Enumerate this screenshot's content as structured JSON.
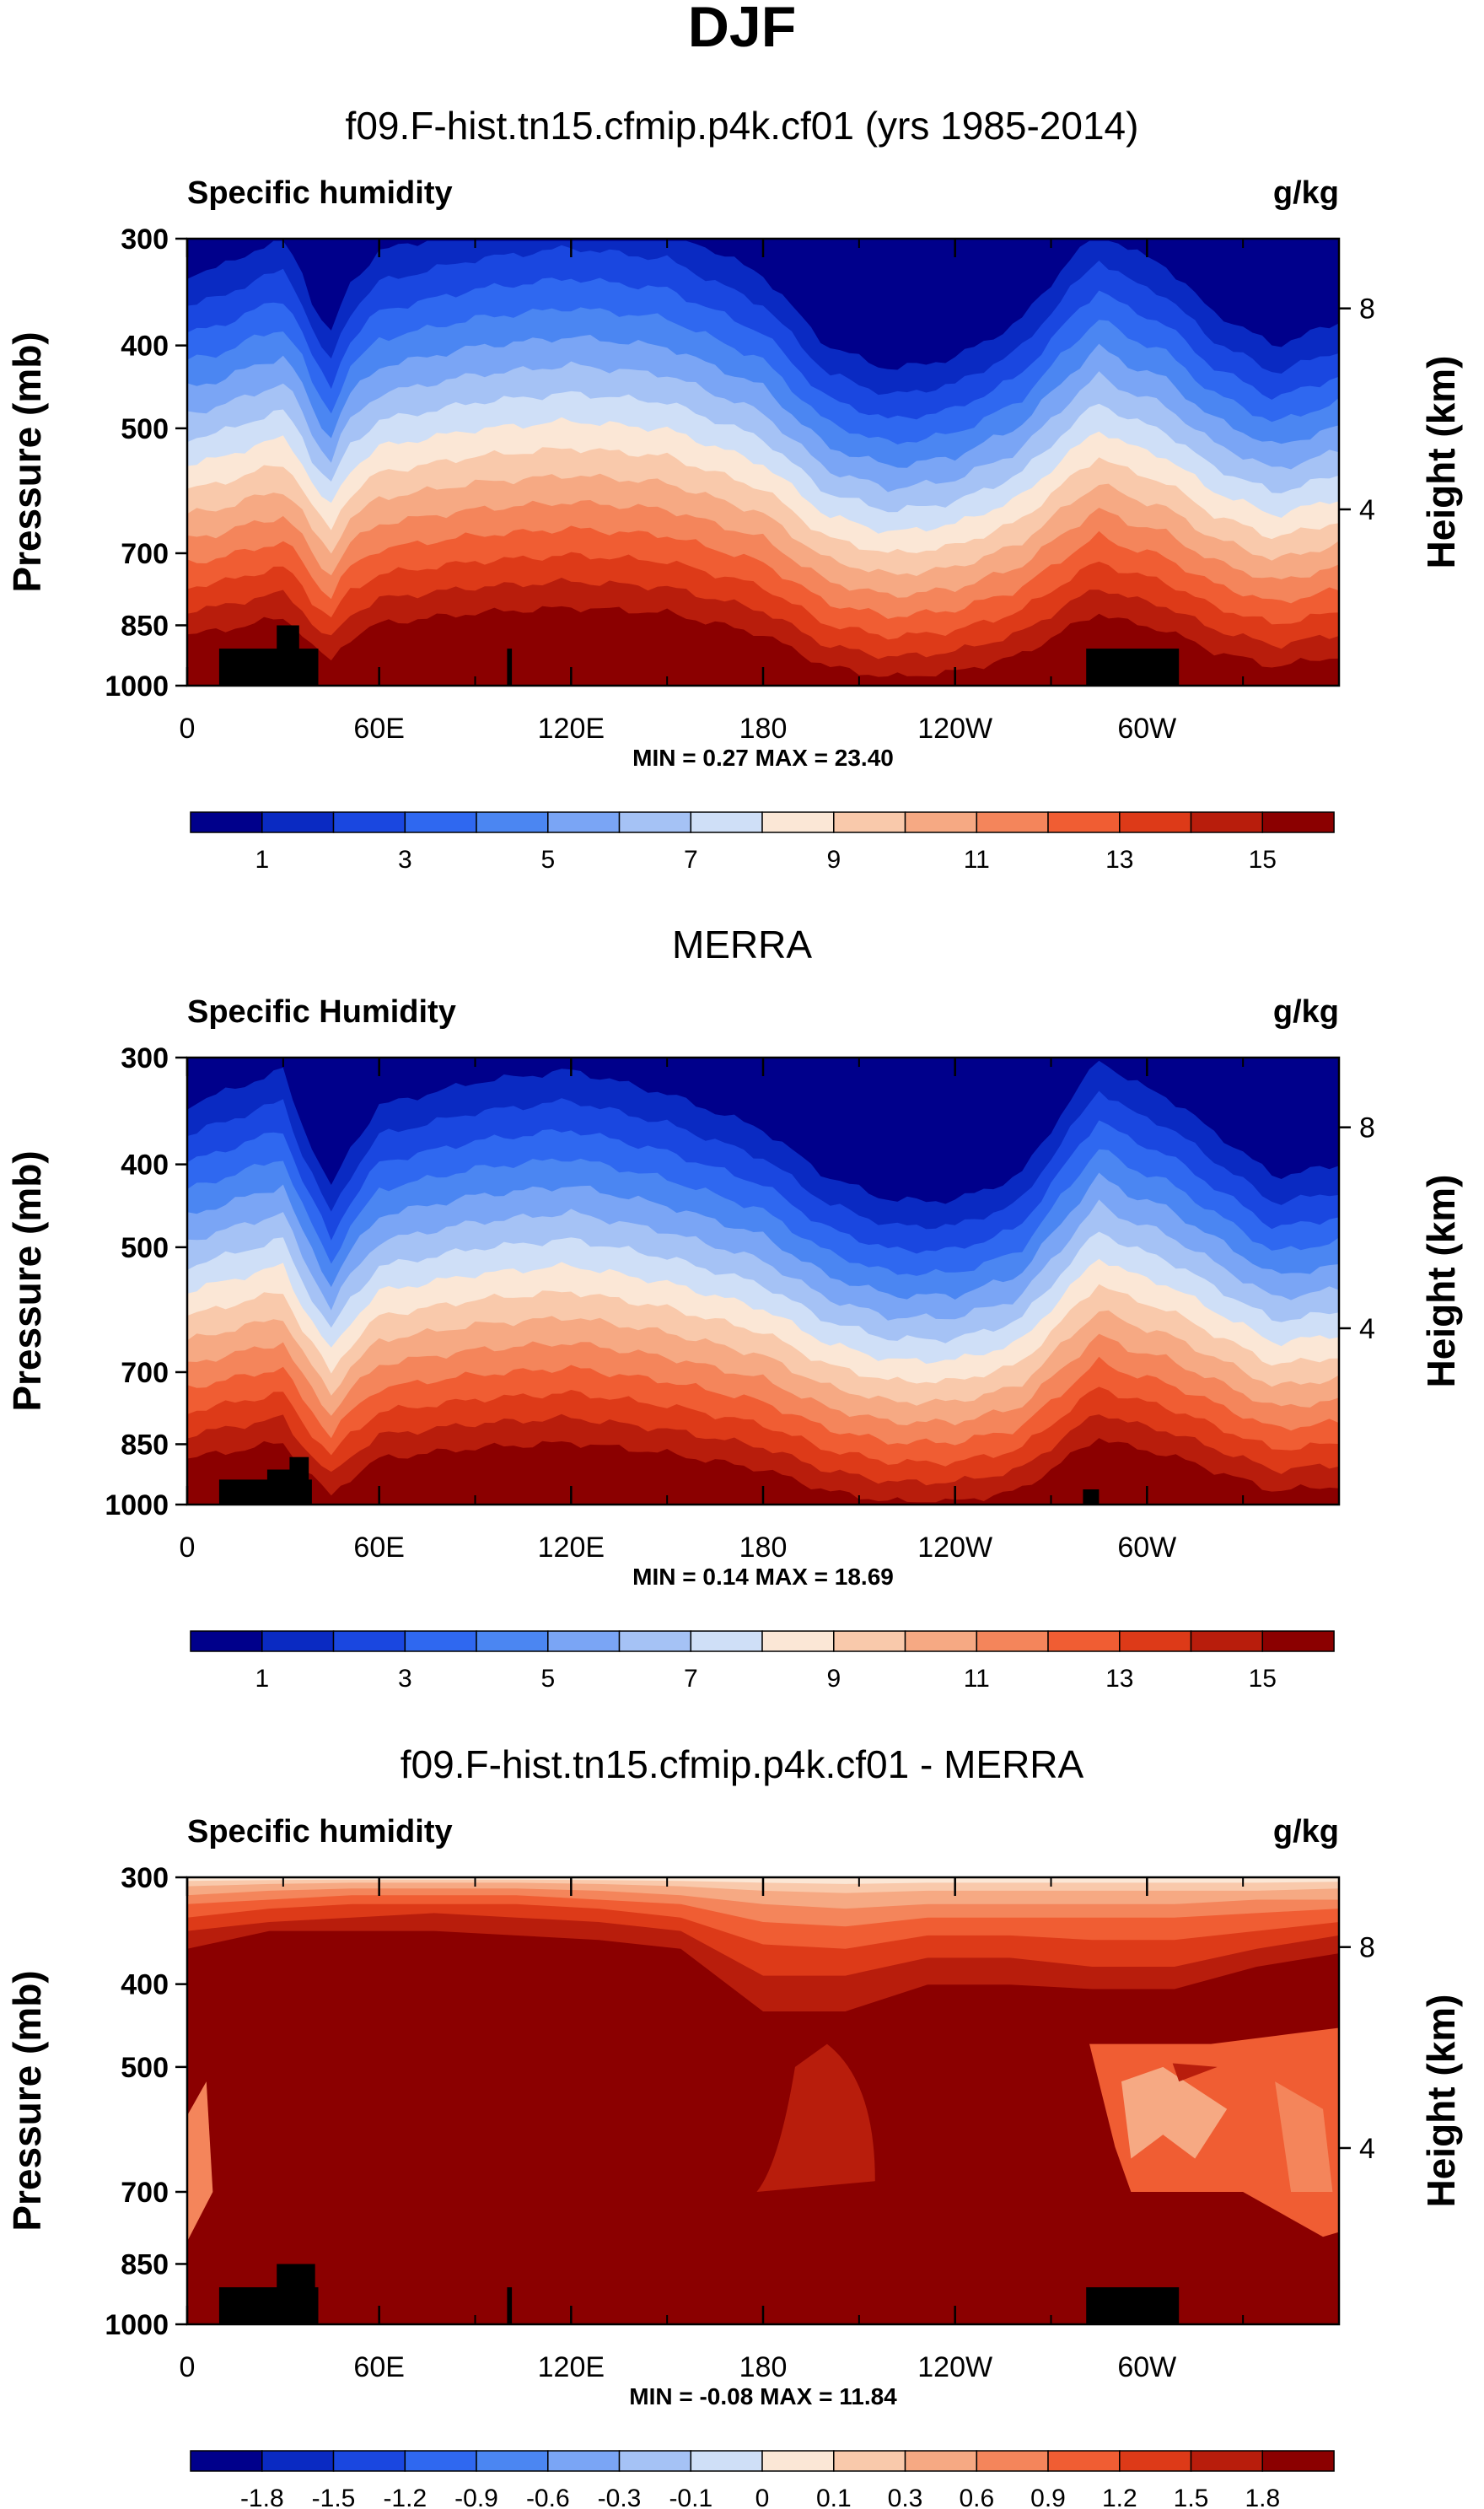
{
  "figure_title": "DJF",
  "colors": {
    "seq": [
      "#00008b",
      "#0a2ac2",
      "#1a47e0",
      "#2f68f0",
      "#4b86f2",
      "#7aa5f5",
      "#a5c2f5",
      "#cfdff7",
      "#fbe7d6",
      "#f9c9ab",
      "#f6a983",
      "#f4855b",
      "#f05d33",
      "#dd3a18",
      "#b81d0c",
      "#8b0000"
    ],
    "land": "#000000"
  },
  "panels": [
    {
      "title": "f09.F-hist.tn15.cfmip.p4k.cf01 (yrs 1985-2014)",
      "left_label": "Specific humidity",
      "right_label": "g/kg",
      "y_axis_label": "Pressure (mb)",
      "y2_axis_label": "Height (km)",
      "minmax": "MIN =   0.27  MAX =  23.40",
      "colorbar_labels": [
        "1",
        "3",
        "5",
        "7",
        "9",
        "11",
        "13",
        "15"
      ]
    },
    {
      "title": "MERRA",
      "left_label": "Specific Humidity",
      "right_label": "g/kg",
      "y_axis_label": "Pressure (mb)",
      "y2_axis_label": "Height (km)",
      "minmax": "MIN =   0.14  MAX =  18.69",
      "colorbar_labels": [
        "1",
        "3",
        "5",
        "7",
        "9",
        "11",
        "13",
        "15"
      ]
    },
    {
      "title": "f09.F-hist.tn15.cfmip.p4k.cf01 - MERRA",
      "left_label": "Specific humidity",
      "right_label": "g/kg",
      "y_axis_label": "Pressure (mb)",
      "y2_axis_label": "Height (km)",
      "minmax": "MIN = -0.08  MAX =  11.84",
      "colorbar_labels": [
        "-1.8",
        "-1.5",
        "-1.2",
        "-0.9",
        "-0.6",
        "-0.3",
        "-0.1",
        "0",
        "0.1",
        "0.3",
        "0.6",
        "0.9",
        "1.2",
        "1.5",
        "1.8"
      ]
    }
  ],
  "chart_data": [
    {
      "type": "contour",
      "title": "f09.F-hist.tn15.cfmip.p4k.cf01 (yrs 1985-2014)",
      "variable": "Specific humidity",
      "units": "g/kg",
      "xlabel": "",
      "ylabel": "Pressure (mb)",
      "y2label": "Height (km)",
      "x_ticks": [
        "0",
        "60E",
        "120E",
        "180",
        "120W",
        "60W"
      ],
      "x_tick_values": [
        0,
        60,
        120,
        180,
        240,
        300
      ],
      "xlim": [
        0,
        360
      ],
      "y_ticks": [
        300,
        400,
        500,
        700,
        850,
        1000
      ],
      "ylim": [
        1000,
        300
      ],
      "y2_ticks": [
        "8",
        "4"
      ],
      "y2_tick_values": [
        8,
        4
      ],
      "levels": [
        0,
        1,
        2,
        3,
        4,
        5,
        6,
        7,
        8,
        9,
        10,
        11,
        12,
        13,
        14,
        15
      ],
      "colorbar_labels": [
        "1",
        "3",
        "5",
        "7",
        "9",
        "11",
        "13",
        "15"
      ],
      "min": 0.27,
      "max": 23.4,
      "profile_lon": [
        0,
        10,
        20,
        30,
        35,
        40,
        45,
        50,
        60,
        90,
        120,
        150,
        180,
        200,
        220,
        240,
        260,
        275,
        285,
        295,
        305,
        320,
        340,
        360
      ],
      "profile_hgt": [
        0.45,
        0.48,
        0.55,
        0.6,
        0.5,
        0.3,
        0.2,
        0.4,
        0.55,
        0.65,
        0.7,
        0.65,
        0.45,
        0.15,
        0.05,
        0.1,
        0.25,
        0.5,
        0.65,
        0.55,
        0.5,
        0.3,
        0.15,
        0.25
      ],
      "land": [
        {
          "x0": 10,
          "x1": 41,
          "p": 905
        },
        {
          "x0": 28,
          "x1": 35,
          "p": 850
        },
        {
          "x0": 100,
          "x1": 101.5,
          "p": 905
        },
        {
          "x0": 281,
          "x1": 310,
          "p": 905
        }
      ]
    },
    {
      "type": "contour",
      "title": "MERRA",
      "variable": "Specific Humidity",
      "units": "g/kg",
      "xlabel": "",
      "ylabel": "Pressure (mb)",
      "y2label": "Height (km)",
      "x_ticks": [
        "0",
        "60E",
        "120E",
        "180",
        "120W",
        "60W"
      ],
      "x_tick_values": [
        0,
        60,
        120,
        180,
        240,
        300
      ],
      "xlim": [
        0,
        360
      ],
      "y_ticks": [
        300,
        400,
        500,
        700,
        850,
        1000
      ],
      "ylim": [
        1000,
        300
      ],
      "y2_ticks": [
        "8",
        "4"
      ],
      "y2_tick_values": [
        8,
        4
      ],
      "levels": [
        0,
        1,
        2,
        3,
        4,
        5,
        6,
        7,
        8,
        9,
        10,
        11,
        12,
        13,
        14,
        15
      ],
      "colorbar_labels": [
        "1",
        "3",
        "5",
        "7",
        "9",
        "11",
        "13",
        "15"
      ],
      "min": 0.14,
      "max": 18.69,
      "profile_lon": [
        0,
        10,
        20,
        30,
        35,
        40,
        45,
        50,
        60,
        90,
        120,
        150,
        180,
        200,
        220,
        240,
        260,
        275,
        285,
        295,
        305,
        320,
        340,
        360
      ],
      "profile_hgt": [
        0.4,
        0.45,
        0.5,
        0.55,
        0.35,
        0.2,
        0.05,
        0.2,
        0.4,
        0.5,
        0.55,
        0.45,
        0.3,
        0.1,
        0.0,
        0.0,
        0.1,
        0.4,
        0.6,
        0.5,
        0.45,
        0.3,
        0.1,
        0.15
      ],
      "land": [
        {
          "x0": 10,
          "x1": 39,
          "p": 935
        },
        {
          "x0": 25,
          "x1": 32,
          "p": 910
        },
        {
          "x0": 32,
          "x1": 38,
          "p": 880
        },
        {
          "x0": 280,
          "x1": 285,
          "p": 960
        }
      ]
    },
    {
      "type": "contour",
      "title": "f09.F-hist.tn15.cfmip.p4k.cf01 - MERRA",
      "variable": "Specific humidity",
      "units": "g/kg",
      "xlabel": "",
      "ylabel": "Pressure (mb)",
      "y2label": "Height (km)",
      "x_ticks": [
        "0",
        "60E",
        "120E",
        "180",
        "120W",
        "60W"
      ],
      "x_tick_values": [
        0,
        60,
        120,
        180,
        240,
        300
      ],
      "xlim": [
        0,
        360
      ],
      "y_ticks": [
        300,
        400,
        500,
        700,
        850,
        1000
      ],
      "ylim": [
        1000,
        300
      ],
      "y2_ticks": [
        "8",
        "4"
      ],
      "y2_tick_values": [
        8,
        4
      ],
      "levels": [
        -1.8,
        -1.5,
        -1.2,
        -0.9,
        -0.6,
        -0.3,
        -0.1,
        0,
        0.1,
        0.3,
        0.6,
        0.9,
        1.2,
        1.5,
        1.8
      ],
      "colorbar_labels": [
        "-1.8",
        "-1.5",
        "-1.2",
        "-0.9",
        "-0.6",
        "-0.3",
        "-0.1",
        "0",
        "0.1",
        "0.3",
        "0.6",
        "0.9",
        "1.2",
        "1.5",
        "1.8"
      ],
      "min": -0.08,
      "max": 11.84,
      "land": [
        {
          "x0": 10,
          "x1": 41,
          "p": 905
        },
        {
          "x0": 28,
          "x1": 40,
          "p": 850
        },
        {
          "x0": 100,
          "x1": 101.5,
          "p": 905
        },
        {
          "x0": 281,
          "x1": 310,
          "p": 905
        }
      ]
    }
  ]
}
